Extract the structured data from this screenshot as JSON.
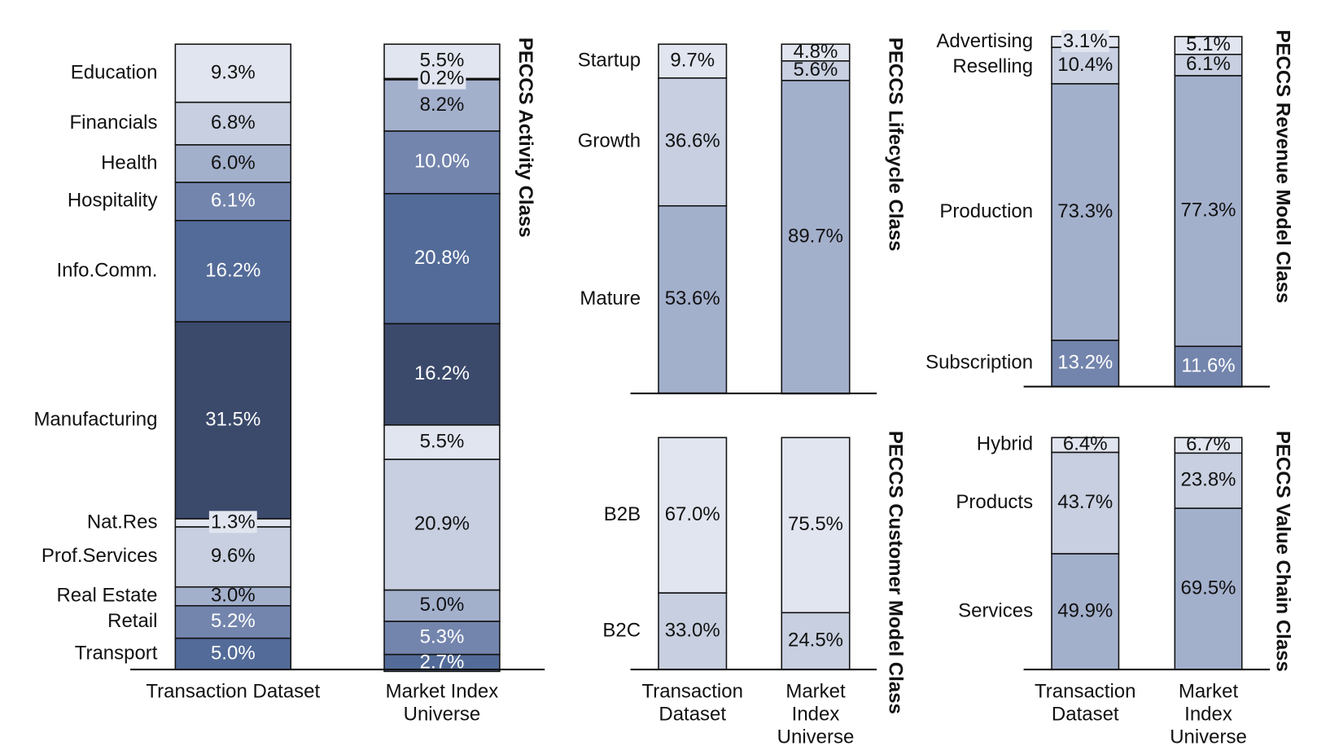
{
  "chart_data": [
    {
      "type": "stacked_bar",
      "title": "PECCS Activity Class",
      "categories": [
        "Transaction Dataset",
        "Market Index Universe"
      ],
      "ylim": [
        0,
        100
      ],
      "series": [
        {
          "name": "Education",
          "color": "#e1e5ef",
          "values": [
            9.3,
            5.5
          ],
          "value_labels": [
            "9.3%",
            "5.5%"
          ]
        },
        {
          "name": "Financials",
          "color": "#c7cfe0",
          "values": [
            6.8,
            0.2
          ],
          "value_labels": [
            "6.8%",
            "0.2%"
          ]
        },
        {
          "name": "Health",
          "color": "#a3b0cc",
          "values": [
            6.0,
            8.2
          ],
          "value_labels": [
            "6.0%",
            "8.2%"
          ]
        },
        {
          "name": "Hospitality",
          "color": "#7385ad",
          "values": [
            6.1,
            10.0
          ],
          "value_labels": [
            "6.1%",
            "10.0%"
          ]
        },
        {
          "name": "Info.Comm.",
          "color": "#536b98",
          "values": [
            16.2,
            20.8
          ],
          "value_labels": [
            "16.2%",
            "20.8%"
          ]
        },
        {
          "name": "Manufacturing",
          "color": "#3b4a6b",
          "values": [
            31.5,
            16.2
          ],
          "value_labels": [
            "31.5%",
            "16.2%"
          ]
        },
        {
          "name": "Nat.Res",
          "color": "#e1e5ef",
          "values": [
            1.3,
            5.5
          ],
          "value_labels": [
            "1.3%",
            "5.5%"
          ]
        },
        {
          "name": "Prof.Services",
          "color": "#c7cfe0",
          "values": [
            9.6,
            20.9
          ],
          "value_labels": [
            "9.6%",
            "20.9%"
          ]
        },
        {
          "name": "Real Estate",
          "color": "#a3b0cc",
          "values": [
            3.0,
            5.0
          ],
          "value_labels": [
            "3.0%",
            "5.0%"
          ]
        },
        {
          "name": "Retail",
          "color": "#7385ad",
          "values": [
            5.2,
            5.3
          ],
          "value_labels": [
            "5.2%",
            "5.3%"
          ]
        },
        {
          "name": "Transport",
          "color": "#536b98",
          "values": [
            5.0,
            2.7
          ],
          "value_labels": [
            "5.0%",
            "2.7%"
          ]
        }
      ]
    },
    {
      "type": "stacked_bar",
      "title": "PECCS Lifecycle Class",
      "ylim": [
        0,
        100
      ],
      "series": [
        {
          "name": "Startup",
          "color": "#e1e5ef",
          "values": [
            9.7,
            4.8
          ],
          "value_labels": [
            "9.7%",
            "4.8%"
          ]
        },
        {
          "name": "Growth",
          "color": "#c7cfe0",
          "values": [
            36.6,
            5.6
          ],
          "value_labels": [
            "36.6%",
            "5.6%"
          ]
        },
        {
          "name": "Mature",
          "color": "#a3b0cc",
          "values": [
            53.6,
            89.7
          ],
          "value_labels": [
            "53.6%",
            "89.7%"
          ]
        }
      ]
    },
    {
      "type": "stacked_bar",
      "title": "PECCS Revenue Model Class",
      "ylim": [
        0,
        100
      ],
      "series": [
        {
          "name": "Advertising",
          "color": "#e1e5ef",
          "values": [
            3.1,
            5.1
          ],
          "value_labels": [
            "3.1%",
            "5.1%"
          ]
        },
        {
          "name": "Reselling",
          "color": "#c7cfe0",
          "values": [
            10.4,
            6.1
          ],
          "value_labels": [
            "10.4%",
            "6.1%"
          ]
        },
        {
          "name": "Production",
          "color": "#a3b0cc",
          "values": [
            73.3,
            77.3
          ],
          "value_labels": [
            "73.3%",
            "77.3%"
          ]
        },
        {
          "name": "Subscription",
          "color": "#7385ad",
          "values": [
            13.2,
            11.6
          ],
          "value_labels": [
            "13.2%",
            "11.6%"
          ]
        }
      ]
    },
    {
      "type": "stacked_bar",
      "title": "PECCS Customer Model Class",
      "categories": [
        "Transaction Dataset",
        "Market Index Universe"
      ],
      "ylim": [
        0,
        100
      ],
      "series": [
        {
          "name": "B2B",
          "color": "#e1e5ef",
          "values": [
            67.0,
            75.5
          ],
          "value_labels": [
            "67.0%",
            "75.5%"
          ]
        },
        {
          "name": "B2C",
          "color": "#c7cfe0",
          "values": [
            33.0,
            24.5
          ],
          "value_labels": [
            "33.0%",
            "24.5%"
          ]
        }
      ]
    },
    {
      "type": "stacked_bar",
      "title": "PECCS Value Chain Class",
      "categories": [
        "Transaction Dataset",
        "Market Index Universe"
      ],
      "ylim": [
        0,
        100
      ],
      "series": [
        {
          "name": "Hybrid",
          "color": "#e1e5ef",
          "values": [
            6.4,
            6.7
          ],
          "value_labels": [
            "6.4%",
            "6.7%"
          ]
        },
        {
          "name": "Products",
          "color": "#c7cfe0",
          "values": [
            43.7,
            23.8
          ],
          "value_labels": [
            "43.7%",
            "23.8%"
          ]
        },
        {
          "name": "Services",
          "color": "#a3b0cc",
          "values": [
            49.9,
            69.5
          ],
          "value_labels": [
            "49.9%",
            "69.5%"
          ]
        }
      ]
    }
  ]
}
